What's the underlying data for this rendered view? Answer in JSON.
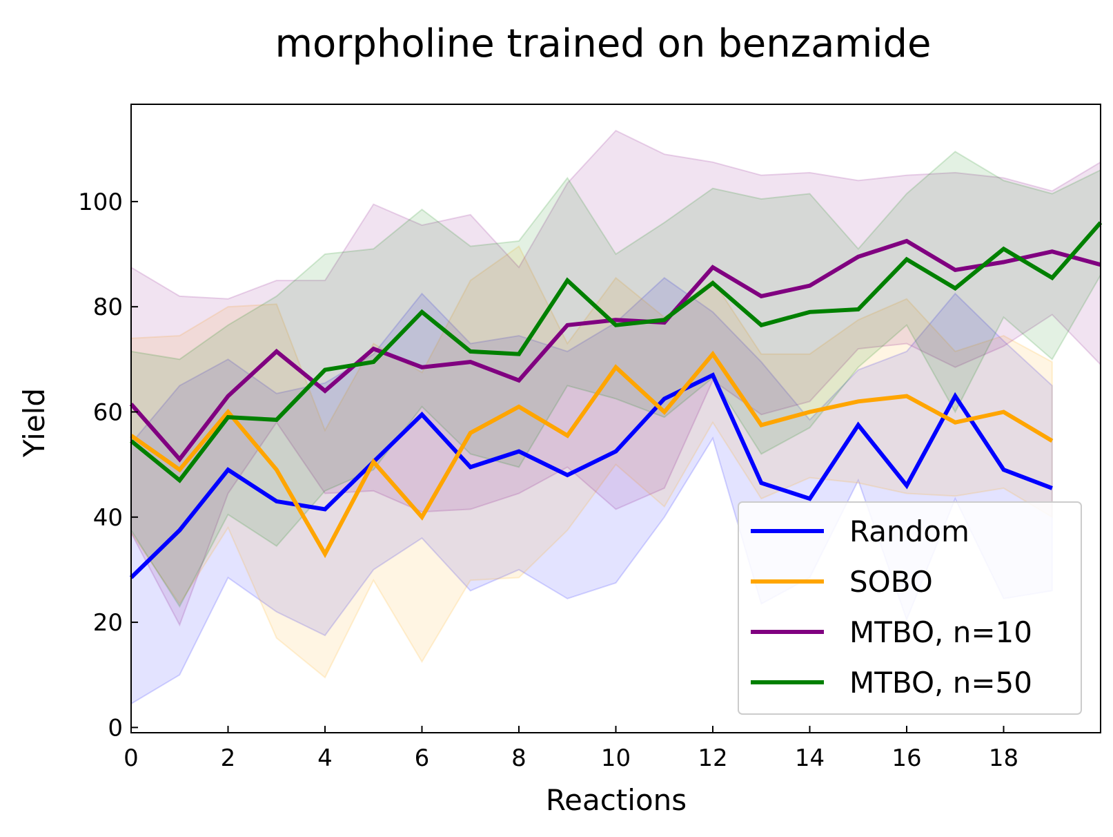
{
  "chart_data": {
    "type": "line",
    "title": "morpholine trained on benzamide",
    "xlabel": "Reactions",
    "ylabel": "Yield",
    "xlim": [
      0,
      20
    ],
    "ylim": [
      -1,
      118.5
    ],
    "xticks": [
      0,
      2,
      4,
      6,
      8,
      10,
      12,
      14,
      16,
      18
    ],
    "xtick_labels": [
      "0",
      "2",
      "4",
      "6",
      "8",
      "10",
      "12",
      "14",
      "16",
      "18"
    ],
    "yticks": [
      0,
      20,
      40,
      60,
      80,
      100
    ],
    "ytick_labels": [
      "0",
      "20",
      "40",
      "60",
      "80",
      "100"
    ],
    "grid": false,
    "legend_position": "lower-right",
    "series": [
      {
        "name": "Random",
        "color": "#0000ff",
        "x": [
          0,
          1,
          2,
          3,
          4,
          5,
          6,
          7,
          8,
          9,
          10,
          11,
          12,
          13,
          14,
          15,
          16,
          17,
          18,
          19
        ],
        "values": [
          28.5,
          37.5,
          49,
          43,
          41.5,
          50.5,
          59.5,
          49.5,
          52.5,
          48,
          52.5,
          62.5,
          67,
          46.5,
          43.5,
          57.5,
          46,
          63,
          49,
          45.5
        ],
        "lower": [
          4.5,
          10,
          28.5,
          22,
          17.5,
          30,
          36,
          26,
          30,
          24.5,
          27.5,
          40,
          55,
          23.5,
          28.5,
          47,
          20.5,
          43.5,
          24.5,
          26
        ],
        "upper": [
          54,
          65,
          70,
          63.5,
          65.5,
          71,
          82.5,
          73,
          74.5,
          71.5,
          77,
          85.5,
          79,
          69.5,
          58.5,
          68,
          71.5,
          82.5,
          73.5,
          65
        ]
      },
      {
        "name": "SOBO",
        "color": "#ffa500",
        "x": [
          0,
          1,
          2,
          3,
          4,
          5,
          6,
          7,
          8,
          9,
          10,
          11,
          12,
          13,
          14,
          15,
          16,
          17,
          18,
          19
        ],
        "values": [
          55.5,
          49,
          60,
          49,
          33,
          50.5,
          40,
          56,
          61,
          55.5,
          68.5,
          60,
          71,
          57.5,
          60,
          62,
          63,
          58,
          60,
          54.5
        ],
        "lower": [
          37,
          23.5,
          38,
          17,
          9.5,
          28,
          12.5,
          28,
          28.5,
          37.5,
          50,
          42,
          58,
          43.5,
          47.5,
          46.5,
          44.5,
          44,
          45.5,
          40
        ],
        "upper": [
          74,
          74.5,
          80,
          80.5,
          56.5,
          73,
          67.5,
          85,
          91.5,
          73,
          85.5,
          78,
          85,
          71,
          71,
          77.5,
          81.5,
          71.5,
          74.5,
          69.5
        ]
      },
      {
        "name": "MTBO, n=10",
        "color": "#800080",
        "x": [
          0,
          1,
          2,
          3,
          4,
          5,
          6,
          7,
          8,
          9,
          10,
          11,
          12,
          13,
          14,
          15,
          16,
          17,
          18,
          19,
          20
        ],
        "values": [
          61.5,
          51,
          63,
          71.5,
          64,
          72,
          68.5,
          69.5,
          66,
          76.5,
          77.5,
          77,
          87.5,
          82,
          84,
          89.5,
          92.5,
          87,
          88.5,
          90.5,
          88
        ],
        "lower": [
          37,
          19.5,
          44.5,
          58,
          44.5,
          45,
          41,
          41.5,
          44.5,
          49.5,
          41.5,
          45.5,
          66,
          59.5,
          62,
          72,
          73,
          68.5,
          72.5,
          78.5,
          69
        ],
        "upper": [
          87.5,
          82,
          81.5,
          85,
          85,
          99.5,
          95.5,
          97.5,
          87.5,
          103.5,
          113.5,
          109,
          107.5,
          105,
          105.5,
          104,
          105,
          105.5,
          104.5,
          102,
          107.5
        ]
      },
      {
        "name": "MTBO, n=50",
        "color": "#008000",
        "x": [
          0,
          1,
          2,
          3,
          4,
          5,
          6,
          7,
          8,
          9,
          10,
          11,
          12,
          13,
          14,
          15,
          16,
          17,
          18,
          19,
          20
        ],
        "values": [
          54.5,
          47,
          59,
          58.5,
          68,
          69.5,
          79,
          71.5,
          71,
          85,
          76.5,
          77.5,
          84.5,
          76.5,
          79,
          79.5,
          89,
          83.5,
          91,
          85.5,
          96
        ],
        "lower": [
          37.5,
          23,
          40.5,
          34.5,
          45,
          49,
          61,
          52,
          49.5,
          65,
          62.5,
          59,
          66.5,
          52,
          57,
          68.5,
          76.5,
          60,
          78,
          70,
          86
        ],
        "upper": [
          71.5,
          70,
          76.5,
          82,
          90,
          91,
          98.5,
          91.5,
          92.5,
          104.5,
          90,
          96,
          102.5,
          100.5,
          101.5,
          91,
          101.5,
          109.5,
          104,
          101.5,
          106
        ]
      }
    ]
  }
}
